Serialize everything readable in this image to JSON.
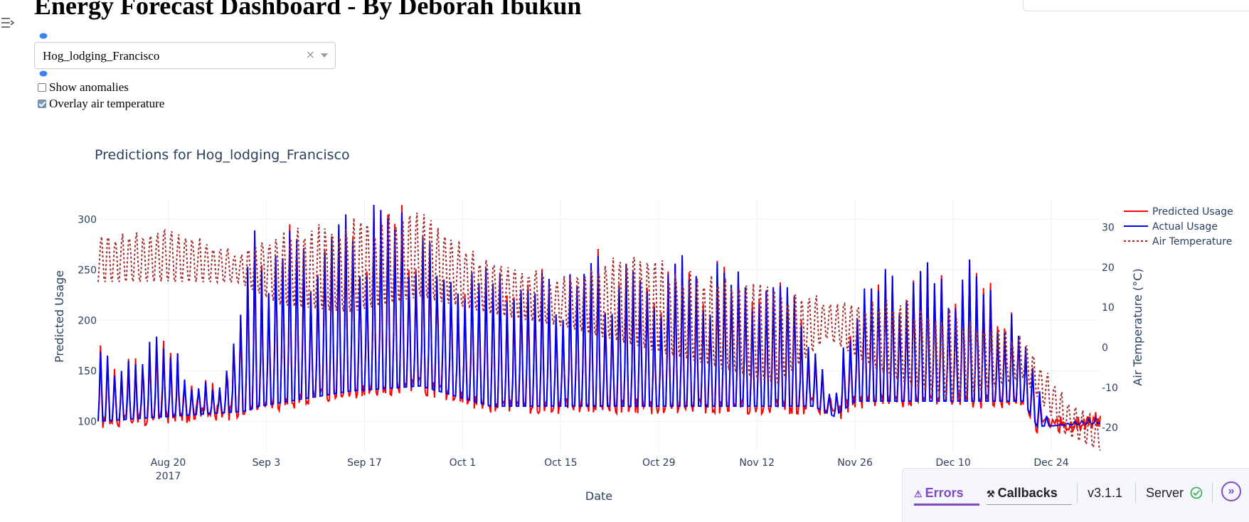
{
  "page": {
    "title": "Energy Forecast Dashboard - By Deborah Ibukun"
  },
  "controls": {
    "building_select": {
      "value": "Hog_lodging_Francisco",
      "clear_symbol": "×"
    },
    "show_anomalies": {
      "label": "Show anomalies",
      "checked": false
    },
    "overlay_air_temp": {
      "label": "Overlay air temperature",
      "checked": true
    }
  },
  "icons": {
    "sidebar_toggle": "sidebar-toggle-icon",
    "clear": "close-icon",
    "dropdown": "chevron-down-icon",
    "server_ok": "check-circle-icon",
    "expand": "double-chevron-right-icon"
  },
  "colors": {
    "predicted": "#ff0000",
    "actual": "#0000ee",
    "air_temperature": "#a52a2a",
    "dash_accent": "#7f4bc4",
    "axis_text": "#2a3f5f",
    "grid": "#ebf0f8"
  },
  "chart_data": {
    "type": "line",
    "title": "Predictions for Hog_lodging_Francisco",
    "xlabel": "Date",
    "ylabel": "Predicted Usage",
    "y2label": "Air Temperature (°C)",
    "x_range": [
      "2017-08-10",
      "2017-12-31"
    ],
    "ylim": [
      70,
      320
    ],
    "y2lim": [
      -26,
      37
    ],
    "x_ticks": [
      {
        "date": "2017-08-20",
        "label": "Aug 20",
        "sub": "2017"
      },
      {
        "date": "2017-09-03",
        "label": "Sep 3",
        "sub": ""
      },
      {
        "date": "2017-09-17",
        "label": "Sep 17",
        "sub": ""
      },
      {
        "date": "2017-10-01",
        "label": "Oct 1",
        "sub": ""
      },
      {
        "date": "2017-10-15",
        "label": "Oct 15",
        "sub": ""
      },
      {
        "date": "2017-10-29",
        "label": "Oct 29",
        "sub": ""
      },
      {
        "date": "2017-11-12",
        "label": "Nov 12",
        "sub": ""
      },
      {
        "date": "2017-11-26",
        "label": "Nov 26",
        "sub": ""
      },
      {
        "date": "2017-12-10",
        "label": "Dec 10",
        "sub": ""
      },
      {
        "date": "2017-12-24",
        "label": "Dec 24",
        "sub": ""
      }
    ],
    "y_ticks": [
      100,
      150,
      200,
      250,
      300
    ],
    "y2_ticks": [
      -20,
      -10,
      0,
      10,
      20,
      30
    ],
    "grid": true,
    "legend_position": "top-right",
    "series": [
      {
        "name": "Predicted Usage",
        "color": "#ff0000",
        "dash": "solid",
        "axis": "y",
        "x": [],
        "y": []
      },
      {
        "name": "Actual Usage",
        "color": "#0000ee",
        "dash": "solid",
        "axis": "y",
        "x": [],
        "y": []
      },
      {
        "name": "Air Temperature",
        "color": "#a52a2a",
        "dash": "dot",
        "axis": "y2",
        "x": [],
        "y": []
      }
    ],
    "usage_peaks": [
      {
        "date": "2017-08-10",
        "value": 182
      },
      {
        "date": "2017-08-14",
        "value": 160
      },
      {
        "date": "2017-08-16",
        "value": 160
      },
      {
        "date": "2017-08-19",
        "value": 207
      },
      {
        "date": "2017-08-23",
        "value": 135
      },
      {
        "date": "2017-08-27",
        "value": 140
      },
      {
        "date": "2017-08-29",
        "value": 165
      },
      {
        "date": "2017-09-01",
        "value": 290
      },
      {
        "date": "2017-09-08",
        "value": 280
      },
      {
        "date": "2017-09-15",
        "value": 300
      },
      {
        "date": "2017-09-22",
        "value": 315
      },
      {
        "date": "2017-09-28",
        "value": 255
      },
      {
        "date": "2017-10-06",
        "value": 255
      },
      {
        "date": "2017-10-13",
        "value": 240
      },
      {
        "date": "2017-10-20",
        "value": 258
      },
      {
        "date": "2017-10-27",
        "value": 245
      },
      {
        "date": "2017-11-03",
        "value": 262
      },
      {
        "date": "2017-11-10",
        "value": 250
      },
      {
        "date": "2017-11-17",
        "value": 250
      },
      {
        "date": "2017-11-23",
        "value": 115
      },
      {
        "date": "2017-11-26",
        "value": 245
      },
      {
        "date": "2017-12-05",
        "value": 255
      },
      {
        "date": "2017-12-12",
        "value": 262
      },
      {
        "date": "2017-12-20",
        "value": 190
      },
      {
        "date": "2017-12-24",
        "value": 95
      },
      {
        "date": "2017-12-31",
        "value": 105
      }
    ],
    "usage_floor": [
      {
        "date": "2017-08-10",
        "value": 100
      },
      {
        "date": "2017-08-31",
        "value": 110
      },
      {
        "date": "2017-09-02",
        "value": 115
      },
      {
        "date": "2017-09-15",
        "value": 130
      },
      {
        "date": "2017-09-25",
        "value": 135
      },
      {
        "date": "2017-10-05",
        "value": 115
      },
      {
        "date": "2017-11-20",
        "value": 115
      },
      {
        "date": "2017-11-23",
        "value": 105
      },
      {
        "date": "2017-11-26",
        "value": 120
      },
      {
        "date": "2017-12-20",
        "value": 120
      },
      {
        "date": "2017-12-22",
        "value": 95
      },
      {
        "date": "2017-12-31",
        "value": 98
      }
    ],
    "temperature_envelope": [
      {
        "date": "2017-08-10",
        "high": 28,
        "low": 16
      },
      {
        "date": "2017-08-20",
        "high": 30,
        "low": 16
      },
      {
        "date": "2017-08-30",
        "high": 24,
        "low": 16
      },
      {
        "date": "2017-09-05",
        "high": 30,
        "low": 10
      },
      {
        "date": "2017-09-15",
        "high": 32,
        "low": 8
      },
      {
        "date": "2017-09-25",
        "high": 34,
        "low": 12
      },
      {
        "date": "2017-10-05",
        "high": 22,
        "low": 8
      },
      {
        "date": "2017-10-15",
        "high": 18,
        "low": 5
      },
      {
        "date": "2017-10-25",
        "high": 24,
        "low": 0
      },
      {
        "date": "2017-11-05",
        "high": 18,
        "low": -5
      },
      {
        "date": "2017-11-15",
        "high": 16,
        "low": -10
      },
      {
        "date": "2017-11-22",
        "high": 12,
        "low": 2
      },
      {
        "date": "2017-12-01",
        "high": 12,
        "low": -8
      },
      {
        "date": "2017-12-10",
        "high": 10,
        "low": -14
      },
      {
        "date": "2017-12-20",
        "high": 2,
        "low": -8
      },
      {
        "date": "2017-12-26",
        "high": -12,
        "low": -22
      },
      {
        "date": "2017-12-31",
        "high": -18,
        "low": -26
      }
    ]
  },
  "dash_debug": {
    "errors_label": "Errors",
    "errors_icon": "⚠",
    "callbacks_label": "Callbacks",
    "callbacks_icon": "⚒",
    "version": "v3.1.1",
    "server_label": "Server"
  }
}
